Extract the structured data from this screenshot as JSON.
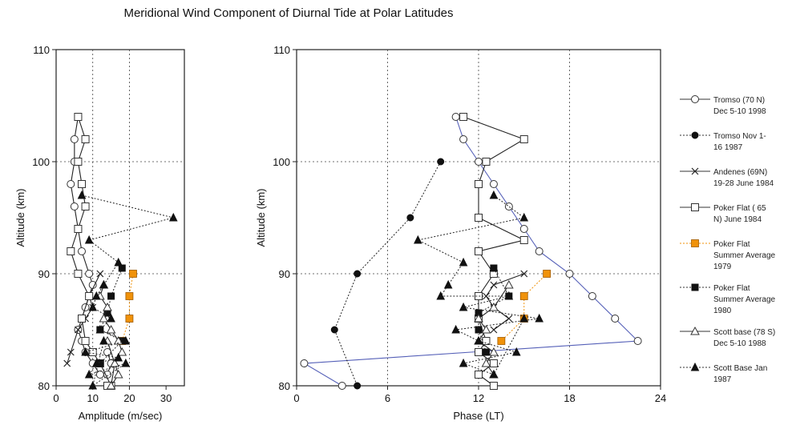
{
  "title": "Meridional Wind Component of Diurnal Tide at Polar Latitudes",
  "chart_data": [
    {
      "type": "line",
      "id": "amplitude",
      "xlabel": "Amplitude (m/sec)",
      "ylabel": "Altitude (km)",
      "xlim": [
        0,
        35
      ],
      "ylim": [
        80,
        110
      ],
      "xticks": [
        "0",
        "10",
        "20",
        "30"
      ],
      "yticks": [
        "80",
        "90",
        "100",
        "110"
      ],
      "grid": true,
      "series": [
        {
          "name": "Tromso (70 N) Dec 5-10 1998",
          "marker": "open-circle",
          "line": "solid",
          "color": "#222222",
          "x": [
            6,
            5,
            5,
            4,
            5,
            6,
            7,
            9,
            10,
            9,
            8,
            7,
            6,
            7,
            8,
            10,
            12,
            14,
            15,
            14
          ],
          "y": [
            104,
            102,
            100,
            98,
            96,
            94,
            92,
            90,
            89,
            88,
            87,
            86,
            85,
            84,
            83,
            82,
            81,
            81,
            82,
            83
          ]
        },
        {
          "name": "Tromso Nov 1-16 1987",
          "marker": "filled-circle",
          "line": "dotted",
          "color": "#222222",
          "x": [],
          "y": []
        },
        {
          "name": "Andenes (69N) 19-28 June 1984",
          "marker": "x",
          "line": "solid",
          "color": "#222222",
          "x": [
            12,
            9,
            10,
            8,
            6,
            4,
            3
          ],
          "y": [
            90,
            88,
            87,
            86,
            85,
            83,
            82
          ]
        },
        {
          "name": "Poker Flat (65 N) June 1984",
          "marker": "open-square",
          "line": "solid",
          "color": "#222222",
          "x": [
            6,
            8,
            6,
            7,
            8,
            6,
            4,
            6,
            9,
            7,
            8,
            10,
            12,
            15,
            14
          ],
          "y": [
            104,
            102,
            100,
            98,
            96,
            94,
            92,
            90,
            88,
            86,
            84,
            83,
            82,
            80,
            80
          ],
          "connect": [
            [
              0,
              1
            ],
            [
              1,
              2
            ],
            [
              2,
              3
            ],
            [
              3,
              4
            ],
            [
              4,
              5
            ],
            [
              5,
              6
            ],
            [
              6,
              7
            ],
            [
              7,
              8
            ],
            [
              8,
              9
            ],
            [
              9,
              10
            ],
            [
              10,
              11
            ],
            [
              11,
              12
            ],
            [
              12,
              13
            ],
            [
              13,
              14
            ]
          ]
        },
        {
          "name": "Poker Flat Summer Average 1979",
          "marker": "orange-square",
          "line": "dotted",
          "color": "#f0920a",
          "x": [
            21,
            20,
            20,
            18
          ],
          "y": [
            90,
            88,
            86,
            84
          ]
        },
        {
          "name": "Poker Flat Summer Average 1980",
          "marker": "filled-square",
          "line": "dotted",
          "color": "#222222",
          "x": [
            18,
            15,
            14,
            12,
            18,
            12
          ],
          "y": [
            90.5,
            88,
            86.5,
            85,
            84,
            82
          ]
        },
        {
          "name": "Scott base (78 S) Dec 5-10 1988",
          "marker": "open-triangle",
          "line": "solid",
          "color": "#222222",
          "x": [
            13,
            12,
            14,
            13,
            15,
            17,
            18,
            16,
            17,
            15,
            16,
            14
          ],
          "y": [
            89,
            88,
            87,
            86,
            85,
            84,
            83,
            82,
            81,
            80,
            82,
            84
          ]
        },
        {
          "name": "Scott Base Jan 1987",
          "marker": "filled-triangle",
          "line": "dotted",
          "color": "#222222",
          "x": [
            7,
            32,
            9,
            17,
            13,
            11,
            10,
            15,
            12,
            19,
            8,
            17,
            11,
            9,
            19,
            10,
            13
          ],
          "y": [
            97,
            95,
            93,
            91,
            89,
            88,
            87,
            86,
            85,
            84,
            83,
            82.5,
            82,
            81,
            82,
            80,
            84
          ]
        }
      ]
    },
    {
      "type": "line",
      "id": "phase",
      "xlabel": "Phase (LT)",
      "ylabel": "Altitude (km)",
      "xlim": [
        0,
        24
      ],
      "ylim": [
        80,
        110
      ],
      "xticks": [
        "0",
        "6",
        "12",
        "18",
        "24"
      ],
      "yticks": [
        "80",
        "90",
        "100",
        "110"
      ],
      "grid": true,
      "series": [
        {
          "name": "Tromso (70 N) Dec 5-10 1998",
          "marker": "open-circle",
          "line": "solid",
          "color": "#5560b8",
          "x": [
            10.5,
            11,
            12,
            13,
            14,
            15,
            16,
            18,
            19.5,
            21,
            22.5,
            0.5,
            3
          ],
          "y": [
            104,
            102,
            100,
            98,
            96,
            94,
            92,
            90,
            88,
            86,
            84,
            82,
            80
          ]
        },
        {
          "name": "Tromso Nov 1-16 1987",
          "marker": "filled-circle",
          "line": "dotted",
          "color": "#222222",
          "x": [
            9.5,
            7.5,
            4,
            2.5,
            4
          ],
          "y": [
            100,
            95,
            90,
            85,
            80
          ]
        },
        {
          "name": "Andenes (69N) 19-28 June 1984",
          "marker": "x",
          "line": "solid",
          "color": "#222222",
          "x": [
            15,
            13,
            12.5,
            13,
            14,
            13
          ],
          "y": [
            90,
            89,
            88,
            87,
            86,
            85
          ]
        },
        {
          "name": "Poker Flat (65 N) June 1984",
          "marker": "open-square",
          "line": "solid",
          "color": "#222222",
          "x": [
            11,
            15,
            12.5,
            12,
            12,
            15,
            12,
            13,
            12,
            12,
            12.5,
            12,
            13,
            12,
            13
          ],
          "y": [
            104,
            102,
            100,
            98,
            95,
            93,
            92,
            90,
            88,
            86,
            84,
            83,
            82,
            81,
            80
          ]
        },
        {
          "name": "Poker Flat Summer Average 1979",
          "marker": "orange-square",
          "line": "dotted",
          "color": "#f0920a",
          "x": [
            16.5,
            15,
            15,
            13.5
          ],
          "y": [
            90,
            88,
            86,
            84
          ]
        },
        {
          "name": "Poker Flat Summer Average 1980",
          "marker": "filled-square",
          "line": "dotted",
          "color": "#222222",
          "x": [
            13,
            14,
            12,
            12,
            12.5
          ],
          "y": [
            90.5,
            88,
            86.5,
            85,
            83
          ]
        },
        {
          "name": "Scott base (78 S) Dec 5-10 1988",
          "marker": "open-triangle",
          "line": "solid",
          "color": "#222222",
          "x": [
            14,
            13,
            12,
            12.5,
            12,
            13,
            12.5,
            13
          ],
          "y": [
            89,
            87,
            86,
            85,
            84,
            83,
            82,
            81
          ]
        },
        {
          "name": "Scott Base Jan 1987",
          "marker": "filled-triangle",
          "line": "dotted",
          "color": "#222222",
          "x": [
            13,
            15,
            8,
            11,
            10,
            9.5,
            14,
            11,
            16,
            10.5,
            12,
            14.5,
            11,
            13,
            15
          ],
          "y": [
            97,
            95,
            93,
            91,
            89,
            88,
            88,
            87,
            86,
            85,
            84,
            83,
            82,
            81,
            86
          ]
        }
      ]
    }
  ],
  "legend": [
    {
      "lines": [
        "Tromso (70 N)",
        "Dec 5-10 1998"
      ],
      "marker": "open-circle",
      "line": "solid"
    },
    {
      "lines": [
        "Tromso Nov 1-",
        "16 1987"
      ],
      "marker": "filled-circle",
      "line": "dotted"
    },
    {
      "lines": [
        "Andenes (69N)",
        "19-28 June 1984"
      ],
      "marker": "x",
      "line": "solid"
    },
    {
      "lines": [
        "Poker Flat ( 65",
        "N) June 1984"
      ],
      "marker": "open-square",
      "line": "solid"
    },
    {
      "lines": [
        "Poker Flat",
        "Summer Average",
        "1979"
      ],
      "marker": "orange-square",
      "line": "dotted"
    },
    {
      "lines": [
        "Poker Flat",
        "Summer Average",
        "1980"
      ],
      "marker": "filled-square",
      "line": "dotted"
    },
    {
      "lines": [
        "Scott base (78 S)",
        "Dec 5-10 1988"
      ],
      "marker": "open-triangle",
      "line": "solid"
    },
    {
      "lines": [
        "Scott Base Jan",
        "1987"
      ],
      "marker": "filled-triangle",
      "line": "dotted"
    }
  ],
  "legend_placement": "right"
}
